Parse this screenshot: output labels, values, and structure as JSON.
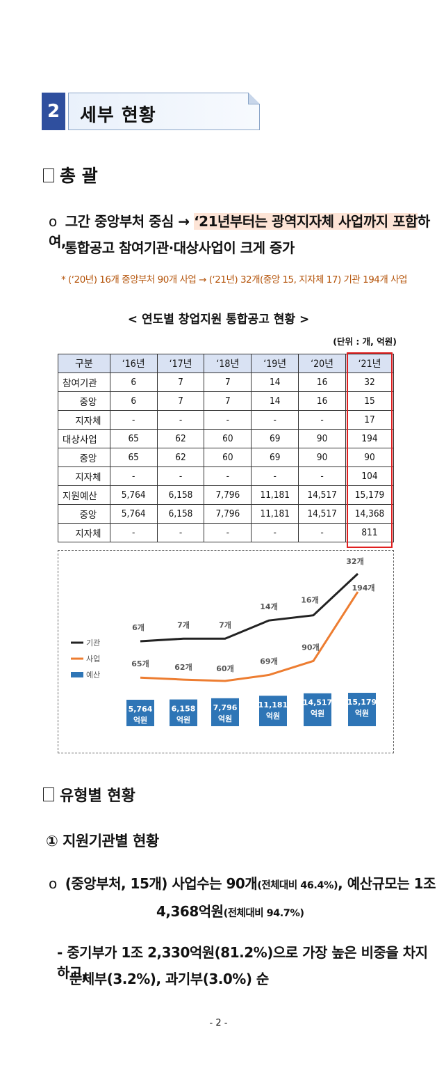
{
  "section": {
    "number": "2",
    "title": "세부 현황"
  },
  "overview": {
    "heading": "총  괄",
    "bullet_mark": "o",
    "line1_pre": "그간 중앙부처 중심 → ",
    "line1_hl": "‘21년부터는 광역지자체 사업까지 포함",
    "line1_post": "하여,",
    "line2": "통합공고 참여기관·대상사업이 크게 증가",
    "note": "* (‘20년) 16개 중앙부처 90개 사업 → (‘21년) 32개(중앙 15, 지자체 17) 기관 194개 사업"
  },
  "table": {
    "title": "< 연도별 창업지원 통합공고 현황 >",
    "unit": "(단위 : 개, 억원)",
    "header": [
      "구분",
      "‘16년",
      "‘17년",
      "‘18년",
      "‘19년",
      "‘20년",
      "‘21년"
    ],
    "rows": [
      [
        "참여기관",
        "6",
        "7",
        "7",
        "14",
        "16",
        "32"
      ],
      [
        "중앙",
        "6",
        "7",
        "7",
        "14",
        "16",
        "15"
      ],
      [
        "지자체",
        "-",
        "-",
        "-",
        "-",
        "-",
        "17"
      ],
      [
        "대상사업",
        "65",
        "62",
        "60",
        "69",
        "90",
        "194"
      ],
      [
        "중앙",
        "65",
        "62",
        "60",
        "69",
        "90",
        "90"
      ],
      [
        "지자체",
        "-",
        "-",
        "-",
        "-",
        "-",
        "104"
      ],
      [
        "지원예산",
        "5,764",
        "6,158",
        "7,796",
        "11,181",
        "14,517",
        "15,179"
      ],
      [
        "중앙",
        "5,764",
        "6,158",
        "7,796",
        "11,181",
        "14,517",
        "14,368"
      ],
      [
        "지자체",
        "-",
        "-",
        "-",
        "-",
        "-",
        "811"
      ]
    ]
  },
  "chart_data": {
    "type": "line",
    "x": [
      "‘16년",
      "‘17년",
      "‘18년",
      "‘19년",
      "‘20년",
      "‘21년"
    ],
    "legend": [
      "기관",
      "사업",
      "예산"
    ],
    "series": [
      {
        "name": "기관",
        "values": [
          6,
          7,
          7,
          14,
          16,
          32
        ],
        "labels": [
          "6개",
          "7개",
          "7개",
          "14개",
          "16개",
          "32개"
        ],
        "color": "#222222"
      },
      {
        "name": "사업",
        "values": [
          65,
          62,
          60,
          69,
          90,
          194
        ],
        "labels": [
          "65개",
          "62개",
          "60개",
          "69개",
          "90개",
          "194개"
        ],
        "color": "#ed7d31"
      },
      {
        "name": "예산",
        "values": [
          5764,
          6158,
          7796,
          11181,
          14517,
          15179
        ],
        "labels": [
          "5,764",
          "6,158",
          "7,796",
          "11,181",
          "14,517",
          "15,179"
        ],
        "unit": "억원",
        "color": "#2e75b6"
      }
    ]
  },
  "type_section": {
    "heading": "유형별 현황",
    "sub_heading": "① 지원기관별 현황",
    "b1_mark": "o",
    "b1_line1a": "(중앙부처, 15개) 사업수는 90개",
    "b1_line1b": "(전체대비 46.4%)",
    "b1_line1c": ", 예산규모는 1조",
    "b1_line2a": "4,368억원",
    "b1_line2b": "(전체대비 94.7%)",
    "b2_line1": "- 중기부가 1조 2,330억원(81.2%)으로 가장 높은 비중을 차지하고,",
    "b2_line2": "문체부(3.2%), 과기부(3.0%) 순"
  },
  "page_number": "- 2 -"
}
